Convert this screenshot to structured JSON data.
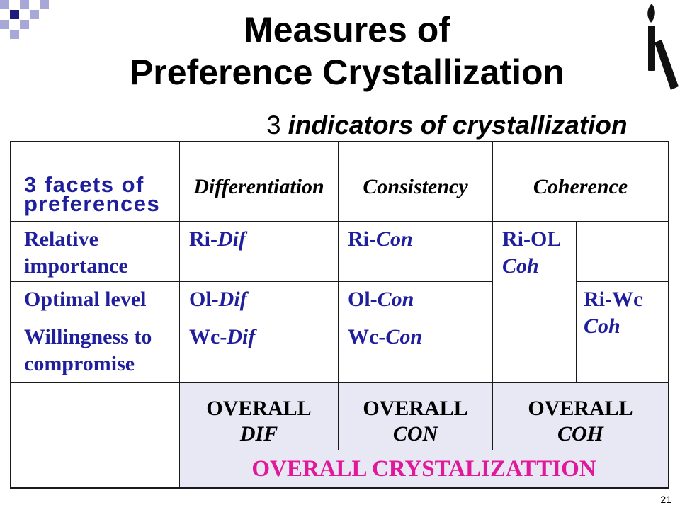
{
  "slide": {
    "title_line1": "Measures of",
    "title_line2": "Preference Crystallization",
    "subtitle_number": "3",
    "subtitle_text": "indicators of crystallization",
    "page_number": "21"
  },
  "icons": {
    "corner_pattern": "checker-squares-icon",
    "logo": "torch-logo-icon"
  },
  "colors": {
    "text": "#000000",
    "label_blue": "#1F1F9E",
    "overall_magenta": "#E0199B",
    "overall_fill": "#E8E8F4",
    "pattern_navy": "#1E1E7A",
    "pattern_lavender": "#A8A8D8"
  },
  "table": {
    "corner_label": "3 facets of preferences",
    "headers": [
      "Differentiation",
      "Consistency",
      "Coherence"
    ],
    "rows": [
      {
        "label": "Relative importance",
        "dif_prefix": "Ri-",
        "dif_suffix": "Dif",
        "con_prefix": "Ri-",
        "con_suffix": "Con"
      },
      {
        "label": "Optimal level",
        "dif_prefix": "Ol-",
        "dif_suffix": "Dif",
        "con_prefix": "Ol-",
        "con_suffix": "Con"
      },
      {
        "label": "Willingness to compromise",
        "dif_prefix": "Wc-",
        "dif_suffix": "Dif",
        "con_prefix": "Wc-",
        "con_suffix": "Con"
      }
    ],
    "coherence_cells": [
      {
        "line1": "Ri-OL",
        "line2": "Coh"
      },
      {
        "line1": "Ri-Wc",
        "line2": "Coh"
      }
    ],
    "overall": [
      {
        "line1": "OVERALL",
        "line2": "DIF"
      },
      {
        "line1": "OVERALL",
        "line2": "CON"
      },
      {
        "line1": "OVERALL",
        "line2": "COH"
      }
    ],
    "overall_total": "OVERALL CRYSTALIZATTION"
  }
}
